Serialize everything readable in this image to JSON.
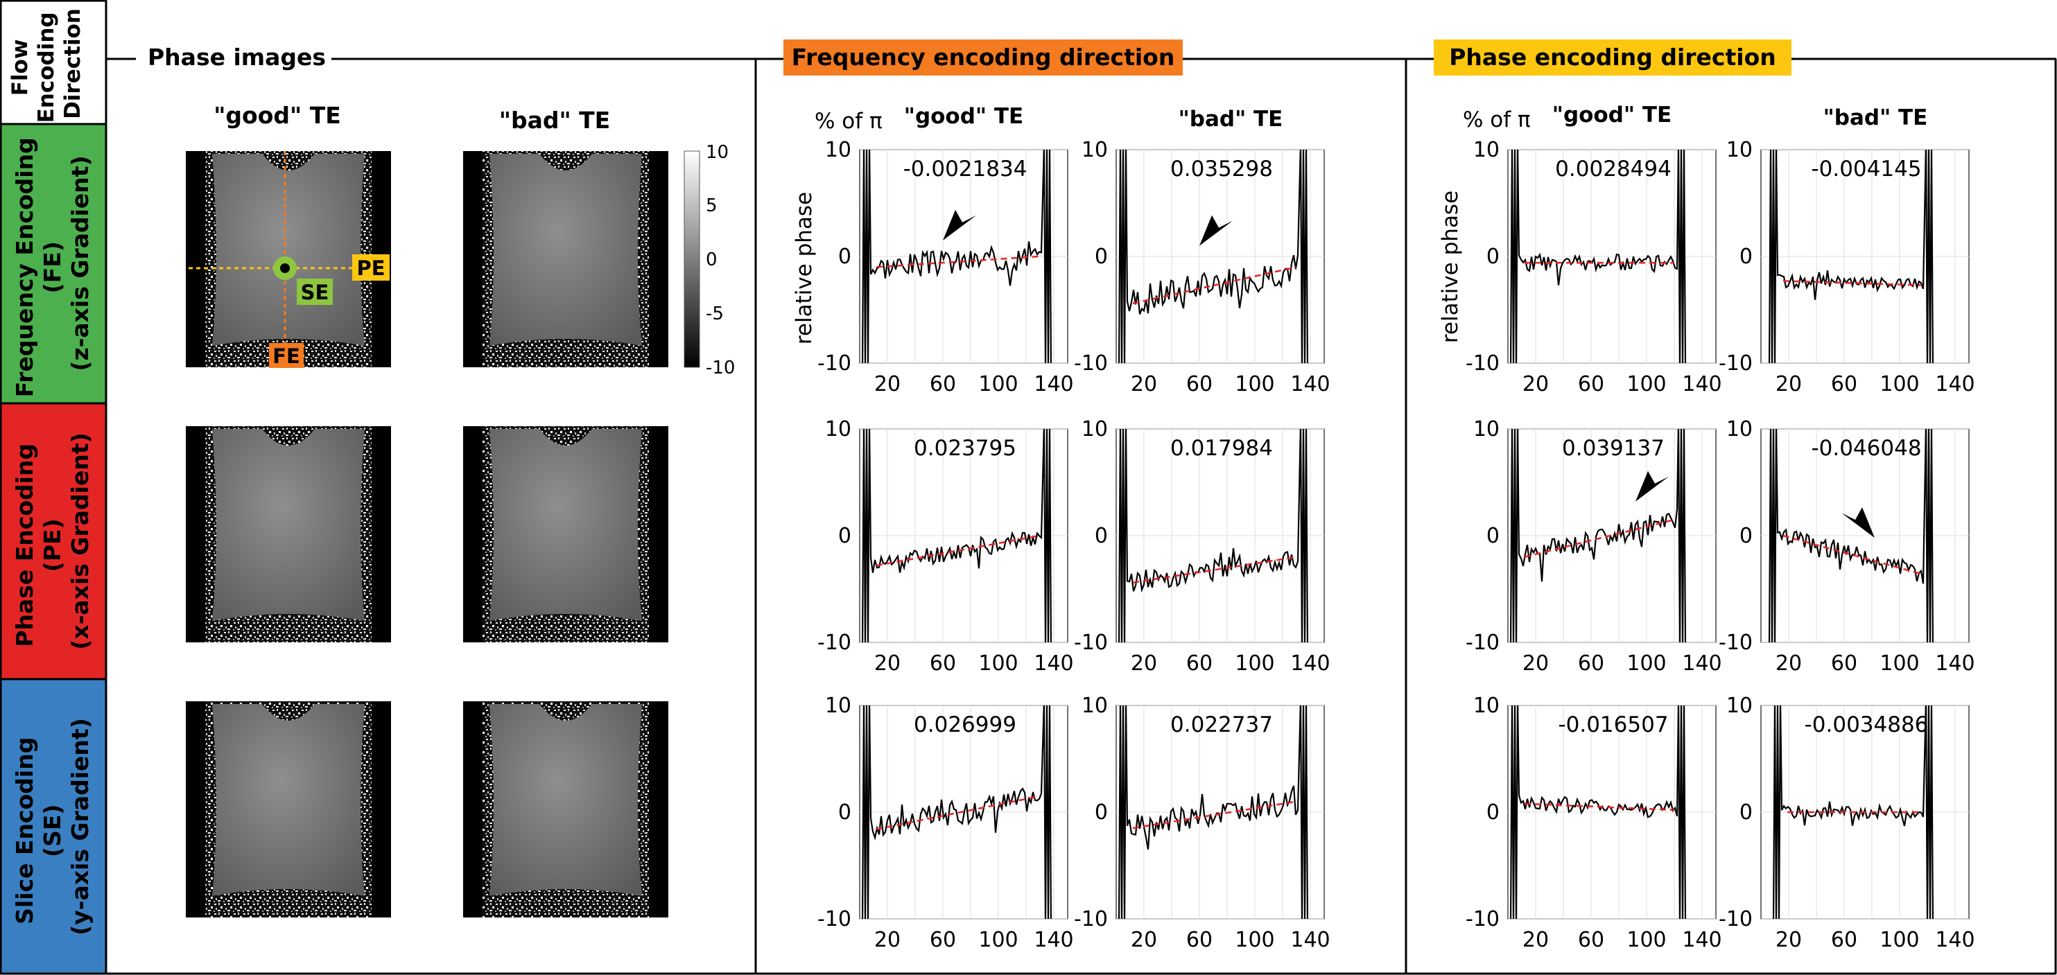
{
  "row_header": {
    "title": "Flow Encoding Direction",
    "title_lines": [
      "Flow",
      "Encoding",
      "Direction"
    ],
    "rows": [
      {
        "label": "Frequency Encoding (FE) (z-axis Gradient)",
        "lines": [
          "Frequency Encoding",
          "(FE)",
          "(z-axis Gradient)"
        ],
        "color": "#4db04e"
      },
      {
        "label": "Phase Encoding (PE) (x-axis Gradient)",
        "lines": [
          "Phase Encoding",
          "(PE)",
          "(x-axis Gradient)"
        ],
        "color": "#e42526"
      },
      {
        "label": "Slice Encoding (SE) (y-axis Gradient)",
        "lines": [
          "Slice Encoding",
          "(SE)",
          "(y-axis Gradient)"
        ],
        "color": "#3a7fc2"
      }
    ]
  },
  "sections": {
    "phase_images": {
      "title": "Phase images",
      "col_good": "\"good\" TE",
      "col_bad": "\"bad\" TE"
    },
    "freq_dir": {
      "title": "Frequency encoding direction",
      "color": "#f47b20"
    },
    "phase_dir": {
      "title": "Phase encoding direction",
      "color": "#fdc70f"
    }
  },
  "colorbar": {
    "ticks": [
      "10",
      "5",
      "0",
      "-5",
      "-10"
    ]
  },
  "markers": {
    "pe": "PE",
    "se": "SE",
    "fe": "FE",
    "pe_color": "#fdc70f",
    "se_color": "#8dc63f",
    "fe_color": "#f47b20"
  },
  "axis_text": {
    "unit_label": "% of π",
    "ylabel": "relative phase",
    "good_title": "\"good\" TE",
    "bad_title": "\"bad\" TE",
    "yticks": [
      "10",
      "0",
      "-10"
    ],
    "xticks": [
      "20",
      "60",
      "100",
      "140"
    ]
  },
  "chart_data": [
    {
      "type": "line",
      "section": "Frequency encoding direction",
      "flow": "FE",
      "te": "good",
      "annotation": "-0.0021834",
      "arrow": true,
      "x_range": [
        0,
        150
      ],
      "ylim": [
        -10,
        10
      ],
      "start": 8,
      "end": 132,
      "base": -0.8,
      "fit": [
        -1.0,
        0.0
      ],
      "noise": 1.2,
      "seed": 3
    },
    {
      "type": "line",
      "section": "Frequency encoding direction",
      "flow": "FE",
      "te": "bad",
      "annotation": "0.035298",
      "arrow": true,
      "x_range": [
        0,
        150
      ],
      "ylim": [
        -10,
        10
      ],
      "start": 8,
      "end": 132,
      "base": -3.2,
      "fit": [
        -4.4,
        -1.0
      ],
      "noise": 1.5,
      "seed": 7
    },
    {
      "type": "line",
      "section": "Frequency encoding direction",
      "flow": "PE",
      "te": "good",
      "annotation": "0.023795",
      "arrow": false,
      "x_range": [
        0,
        150
      ],
      "ylim": [
        -10,
        10
      ],
      "start": 8,
      "end": 132,
      "base": -1.5,
      "fit": [
        -2.8,
        0.0
      ],
      "noise": 0.9,
      "seed": 11
    },
    {
      "type": "line",
      "section": "Frequency encoding direction",
      "flow": "PE",
      "te": "bad",
      "annotation": "0.017984",
      "arrow": false,
      "x_range": [
        0,
        150
      ],
      "ylim": [
        -10,
        10
      ],
      "start": 8,
      "end": 132,
      "base": -3.5,
      "fit": [
        -4.4,
        -2.0
      ],
      "noise": 1.0,
      "seed": 13
    },
    {
      "type": "line",
      "section": "Frequency encoding direction",
      "flow": "SE",
      "te": "good",
      "annotation": "0.026999",
      "arrow": false,
      "x_range": [
        0,
        150
      ],
      "ylim": [
        -10,
        10
      ],
      "start": 8,
      "end": 132,
      "base": -0.5,
      "fit": [
        -1.6,
        1.5
      ],
      "noise": 1.2,
      "seed": 17
    },
    {
      "type": "line",
      "section": "Frequency encoding direction",
      "flow": "SE",
      "te": "bad",
      "annotation": "0.022737",
      "arrow": false,
      "x_range": [
        0,
        150
      ],
      "ylim": [
        -10,
        10
      ],
      "start": 8,
      "end": 132,
      "base": -0.5,
      "fit": [
        -1.5,
        1.0
      ],
      "noise": 1.2,
      "seed": 19
    },
    {
      "type": "line",
      "section": "Phase encoding direction",
      "flow": "FE",
      "te": "good",
      "annotation": "0.0028494",
      "arrow": false,
      "x_range": [
        0,
        150
      ],
      "ylim": [
        -10,
        10
      ],
      "start": 8,
      "end": 122,
      "base": -0.6,
      "fit": [
        -0.6,
        -0.6
      ],
      "noise": 0.8,
      "seed": 23
    },
    {
      "type": "line",
      "section": "Phase encoding direction",
      "flow": "FE",
      "te": "bad",
      "annotation": "-0.004145",
      "arrow": false,
      "x_range": [
        0,
        150
      ],
      "ylim": [
        -10,
        10
      ],
      "start": 12,
      "end": 118,
      "base": -2.5,
      "fit": [
        -2.3,
        -2.7
      ],
      "noise": 0.6,
      "seed": 29
    },
    {
      "type": "line",
      "section": "Phase encoding direction",
      "flow": "PE",
      "te": "good",
      "annotation": "0.039137",
      "arrow": true,
      "x_range": [
        0,
        150
      ],
      "ylim": [
        -10,
        10
      ],
      "start": 8,
      "end": 122,
      "base": -0.5,
      "fit": [
        -2.0,
        1.5
      ],
      "noise": 1.0,
      "seed": 31
    },
    {
      "type": "line",
      "section": "Phase encoding direction",
      "flow": "PE",
      "te": "bad",
      "annotation": "-0.046048",
      "arrow": true,
      "x_range": [
        0,
        150
      ],
      "ylim": [
        -10,
        10
      ],
      "start": 12,
      "end": 118,
      "base": -2.0,
      "fit": [
        0.0,
        -3.6
      ],
      "noise": 1.0,
      "seed": 37
    },
    {
      "type": "line",
      "section": "Phase encoding direction",
      "flow": "SE",
      "te": "good",
      "annotation": "-0.016507",
      "arrow": false,
      "x_range": [
        0,
        150
      ],
      "ylim": [
        -10,
        10
      ],
      "start": 8,
      "end": 122,
      "base": 0.5,
      "fit": [
        0.8,
        0.2
      ],
      "noise": 0.8,
      "seed": 41
    },
    {
      "type": "line",
      "section": "Phase encoding direction",
      "flow": "SE",
      "te": "bad",
      "annotation": "-0.0034886",
      "arrow": false,
      "x_range": [
        0,
        150
      ],
      "ylim": [
        -10,
        10
      ],
      "start": 15,
      "end": 118,
      "base": 0.0,
      "fit": [
        0.0,
        0.0
      ],
      "noise": 0.6,
      "seed": 43
    }
  ]
}
